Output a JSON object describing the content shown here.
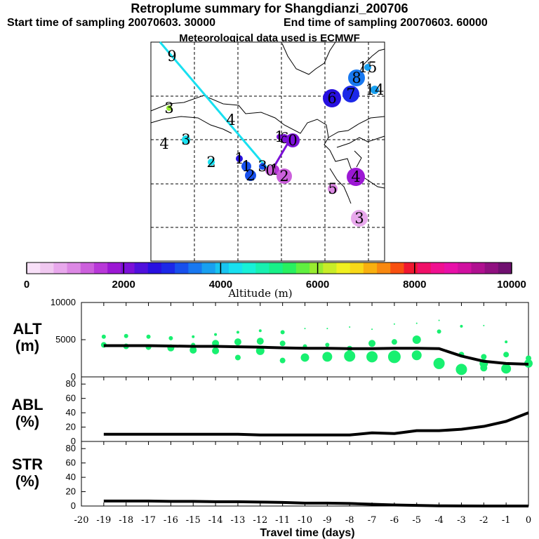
{
  "header": {
    "title": "Retroplume summary for Shangdianzi_200706",
    "start": "Start time of sampling 20070603. 30000",
    "end": "End time of sampling 20070603. 60000",
    "met": "Meteorological data used is ECMWF"
  },
  "colorbar": {
    "label": "Altitude (m)",
    "ticks": [
      "0",
      "2000",
      "4000",
      "6000",
      "8000",
      "10000"
    ],
    "colors": [
      "#f8e0f8",
      "#f0c8f0",
      "#e8a8ec",
      "#dc88e4",
      "#cc60dc",
      "#b838d8",
      "#9c18d4",
      "#7c10d8",
      "#5010dc",
      "#2810e0",
      "#1c28e8",
      "#1850ec",
      "#1878f0",
      "#18a0f0",
      "#18c4f0",
      "#18e0f0",
      "#18f0d8",
      "#18f0b0",
      "#18f088",
      "#28f060",
      "#60f040",
      "#98ec30",
      "#c8ec28",
      "#f0f020",
      "#f8d818",
      "#f8b010",
      "#f88810",
      "#f85010",
      "#f01830",
      "#f01068",
      "#f01090",
      "#e810a8",
      "#d010a0",
      "#b01090",
      "#901080",
      "#701070"
    ]
  },
  "map": {
    "labels": [
      {
        "text": "9",
        "x": 245,
        "y": 80,
        "color": "#18c4f0",
        "r": 0
      },
      {
        "text": "3",
        "x": 241,
        "y": 154,
        "color": "#98ec30",
        "r": 4
      },
      {
        "text": "4",
        "x": 329,
        "y": 171,
        "color": "#18e0f0",
        "r": 0
      },
      {
        "text": "4",
        "x": 234,
        "y": 205,
        "color": "#18e0f0",
        "r": 0
      },
      {
        "text": "3",
        "x": 265,
        "y": 199,
        "color": "#18e0f0",
        "r": 6
      },
      {
        "text": "2",
        "x": 301,
        "y": 231,
        "color": "#18e0f0",
        "r": 5
      },
      {
        "text": "1",
        "x": 341,
        "y": 226,
        "color": "#2810e0",
        "r": 5
      },
      {
        "text": "1",
        "x": 351,
        "y": 237,
        "color": "#1850ec",
        "r": 7
      },
      {
        "text": "2",
        "x": 357,
        "y": 250,
        "color": "#1850ec",
        "r": 8
      },
      {
        "text": "3",
        "x": 374,
        "y": 237,
        "color": "#1850ec",
        "r": 5
      },
      {
        "text": "1",
        "x": 391,
        "y": 242,
        "color": "#b838d8",
        "r": 7
      },
      {
        "text": "0",
        "x": 385,
        "y": 243,
        "color": "#cc60dc",
        "r": 7
      },
      {
        "text": "2",
        "x": 405,
        "y": 251,
        "color": "#cc60dc",
        "r": 11
      },
      {
        "text": "6",
        "x": 405,
        "y": 197,
        "color": "#7c10d8",
        "r": 6
      },
      {
        "text": "0",
        "x": 417,
        "y": 200,
        "color": "#7c10d8",
        "r": 10
      },
      {
        "text": "1",
        "x": 398,
        "y": 195,
        "color": "#7c10d8",
        "r": 4
      },
      {
        "text": "4",
        "x": 507,
        "y": 252,
        "color": "#9c18d4",
        "r": 13
      },
      {
        "text": "5",
        "x": 474,
        "y": 269,
        "color": "#dc88e4",
        "r": 7
      },
      {
        "text": "3",
        "x": 512,
        "y": 311,
        "color": "#e8a8ec",
        "r": 12
      },
      {
        "text": "6",
        "x": 473,
        "y": 140,
        "color": "#2810e0",
        "r": 13
      },
      {
        "text": "7",
        "x": 500,
        "y": 134,
        "color": "#1c28e8",
        "r": 12
      },
      {
        "text": "8",
        "x": 508,
        "y": 111,
        "color": "#1878f0",
        "r": 12
      },
      {
        "text": "15",
        "x": 524,
        "y": 96,
        "color": "#18a0f0",
        "r": 5
      },
      {
        "text": "14",
        "x": 534,
        "y": 128,
        "color": "#18a0f0",
        "r": 6
      }
    ]
  },
  "axes_labels": {
    "alt_ylabel": "ALT",
    "alt_unit": "(m)",
    "abl_ylabel": "ABL",
    "abl_unit": "(%)",
    "str_ylabel": "STR",
    "str_unit": "(%)",
    "xlabel": "Travel time (days)"
  },
  "chart_data": [
    {
      "type": "line",
      "title": "ALT",
      "ylabel": "(m)",
      "ylim": [
        0,
        10000
      ],
      "yticks": [
        "10000",
        "5000",
        "0"
      ],
      "ytick_values": [
        10000,
        5000,
        0
      ],
      "x": [
        -19,
        -18,
        -17,
        -16,
        -15,
        -14,
        -13,
        -12,
        -11,
        -10,
        -9,
        -8,
        -7,
        -6,
        -5,
        -4,
        -3,
        -2,
        -1,
        0
      ],
      "values": [
        4200,
        4200,
        4200,
        4150,
        4100,
        4100,
        4050,
        4000,
        3900,
        3850,
        3850,
        3800,
        3800,
        3850,
        3850,
        3800,
        2800,
        2100,
        1800,
        1700
      ],
      "scatter": [
        {
          "x": -19,
          "y": 5400,
          "s": 3
        },
        {
          "x": -19,
          "y": 4300,
          "s": 4
        },
        {
          "x": -18,
          "y": 5500,
          "s": 3
        },
        {
          "x": -18,
          "y": 4100,
          "s": 4
        },
        {
          "x": -17,
          "y": 5400,
          "s": 3
        },
        {
          "x": -17,
          "y": 4000,
          "s": 4
        },
        {
          "x": -16,
          "y": 5200,
          "s": 3
        },
        {
          "x": -16,
          "y": 3900,
          "s": 5
        },
        {
          "x": -15,
          "y": 5400,
          "s": 2
        },
        {
          "x": -15,
          "y": 4300,
          "s": 3
        },
        {
          "x": -15,
          "y": 3600,
          "s": 5
        },
        {
          "x": -14,
          "y": 5700,
          "s": 2
        },
        {
          "x": -14,
          "y": 4500,
          "s": 5
        },
        {
          "x": -14,
          "y": 3500,
          "s": 5
        },
        {
          "x": -13,
          "y": 6000,
          "s": 2
        },
        {
          "x": -13,
          "y": 4700,
          "s": 5
        },
        {
          "x": -13,
          "y": 2600,
          "s": 4
        },
        {
          "x": -12,
          "y": 6200,
          "s": 2
        },
        {
          "x": -12,
          "y": 4800,
          "s": 5
        },
        {
          "x": -12,
          "y": 3500,
          "s": 6
        },
        {
          "x": -11,
          "y": 6000,
          "s": 3
        },
        {
          "x": -11,
          "y": 4500,
          "s": 4
        },
        {
          "x": -11,
          "y": 2200,
          "s": 4
        },
        {
          "x": -10,
          "y": 6500,
          "s": 1
        },
        {
          "x": -10,
          "y": 4100,
          "s": 3
        },
        {
          "x": -10,
          "y": 2600,
          "s": 6
        },
        {
          "x": -9,
          "y": 6500,
          "s": 1
        },
        {
          "x": -9,
          "y": 4300,
          "s": 3
        },
        {
          "x": -9,
          "y": 2700,
          "s": 7
        },
        {
          "x": -8,
          "y": 6700,
          "s": 1
        },
        {
          "x": -8,
          "y": 3800,
          "s": 4
        },
        {
          "x": -8,
          "y": 2800,
          "s": 8
        },
        {
          "x": -7,
          "y": 6400,
          "s": 1
        },
        {
          "x": -7,
          "y": 4500,
          "s": 5
        },
        {
          "x": -7,
          "y": 2700,
          "s": 8
        },
        {
          "x": -6,
          "y": 7100,
          "s": 1
        },
        {
          "x": -6,
          "y": 4700,
          "s": 4
        },
        {
          "x": -6,
          "y": 2700,
          "s": 9
        },
        {
          "x": -5,
          "y": 7200,
          "s": 1
        },
        {
          "x": -5,
          "y": 5000,
          "s": 6
        },
        {
          "x": -5,
          "y": 2900,
          "s": 7
        },
        {
          "x": -4,
          "y": 7600,
          "s": 1
        },
        {
          "x": -4,
          "y": 6100,
          "s": 3
        },
        {
          "x": -4,
          "y": 1800,
          "s": 8
        },
        {
          "x": -3,
          "y": 6800,
          "s": 2
        },
        {
          "x": -3,
          "y": 3000,
          "s": 4
        },
        {
          "x": -3,
          "y": 1000,
          "s": 8
        },
        {
          "x": -2,
          "y": 6900,
          "s": 1
        },
        {
          "x": -2,
          "y": 2700,
          "s": 4
        },
        {
          "x": -2,
          "y": 1800,
          "s": 6
        },
        {
          "x": -2,
          "y": 1200,
          "s": 5
        },
        {
          "x": -1,
          "y": 4700,
          "s": 2
        },
        {
          "x": -1,
          "y": 3000,
          "s": 4
        },
        {
          "x": -1,
          "y": 1100,
          "s": 7
        },
        {
          "x": 0,
          "y": 2500,
          "s": 4
        },
        {
          "x": 0,
          "y": 1800,
          "s": 6
        }
      ]
    },
    {
      "type": "line",
      "title": "ABL",
      "ylabel": "(%)",
      "ylim": [
        0,
        90
      ],
      "yticks": [
        "80",
        "60",
        "40",
        "20",
        "0"
      ],
      "ytick_values": [
        80,
        60,
        40,
        20,
        0
      ],
      "x": [
        -19,
        -18,
        -17,
        -16,
        -15,
        -14,
        -13,
        -12,
        -11,
        -10,
        -9,
        -8,
        -7,
        -6,
        -5,
        -4,
        -3,
        -2,
        -1,
        0
      ],
      "values": [
        10,
        10,
        10,
        10,
        10,
        10,
        10,
        9,
        9,
        9,
        9,
        9,
        12,
        11,
        15,
        15,
        17,
        21,
        28,
        40
      ]
    },
    {
      "type": "line",
      "title": "STR",
      "ylabel": "(%)",
      "ylim": [
        0,
        90
      ],
      "yticks": [
        "80",
        "60",
        "40",
        "20",
        "0"
      ],
      "ytick_values": [
        80,
        60,
        40,
        20,
        0
      ],
      "xlabel": "Travel time (days)",
      "xlim": [
        -20,
        0
      ],
      "xticks": [
        "-20",
        "-19",
        "-18",
        "-17",
        "-16",
        "-15",
        "-14",
        "-13",
        "-12",
        "-11",
        "-10",
        "-9",
        "-8",
        "-7",
        "-6",
        "-5",
        "-4",
        "-3",
        "-2",
        "-1",
        "0"
      ],
      "xtick_values": [
        -20,
        -19,
        -18,
        -17,
        -16,
        -15,
        -14,
        -13,
        -12,
        -11,
        -10,
        -9,
        -8,
        -7,
        -6,
        -5,
        -4,
        -3,
        -2,
        -1,
        0
      ],
      "x": [
        -19,
        -18,
        -17,
        -16,
        -15,
        -14,
        -13,
        -12,
        -11,
        -10,
        -9,
        -8,
        -7,
        -6,
        -5,
        -4,
        -3,
        -2,
        -1,
        0
      ],
      "values": [
        7,
        7,
        7,
        6.5,
        6.5,
        6,
        6,
        5.5,
        5,
        4,
        4,
        3.5,
        2.5,
        1.5,
        0.8,
        0.3,
        0.1,
        0,
        0,
        0
      ]
    }
  ]
}
